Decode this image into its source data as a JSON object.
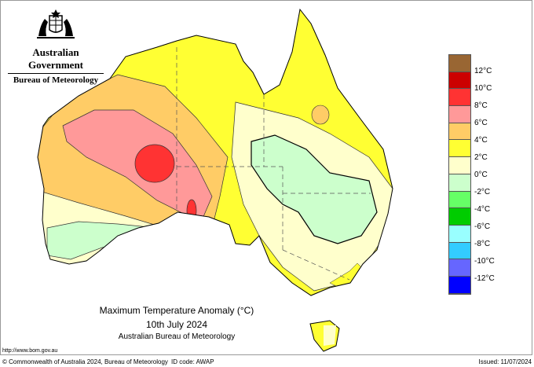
{
  "header": {
    "government": "Australian Government",
    "bureau": "Bureau of Meteorology"
  },
  "titles": {
    "title": "Maximum Temperature Anomaly (°C)",
    "date": "10th July 2024",
    "source": "Australian Bureau of Meteorology"
  },
  "url": "http://www.bom.gov.au",
  "footer": {
    "copyright": "© Commonwealth of Australia 2024, Bureau of Meteorology",
    "id_code": "ID code: AWAP",
    "issued": "Issued: 11/07/2024"
  },
  "legend": {
    "colors": [
      "#996633",
      "#cc0000",
      "#ff3333",
      "#ff9999",
      "#ffcc66",
      "#ffff33",
      "#ffffcc",
      "#ccffcc",
      "#66ff66",
      "#00cc00",
      "#99ffff",
      "#33ccff",
      "#6666ff",
      "#0000ff"
    ],
    "labels": [
      "12°C",
      "10°C",
      "8°C",
      "6°C",
      "4°C",
      "2°C",
      "0°C",
      "-2°C",
      "-4°C",
      "-6°C",
      "-8°C",
      "-10°C",
      "-12°C"
    ]
  }
}
